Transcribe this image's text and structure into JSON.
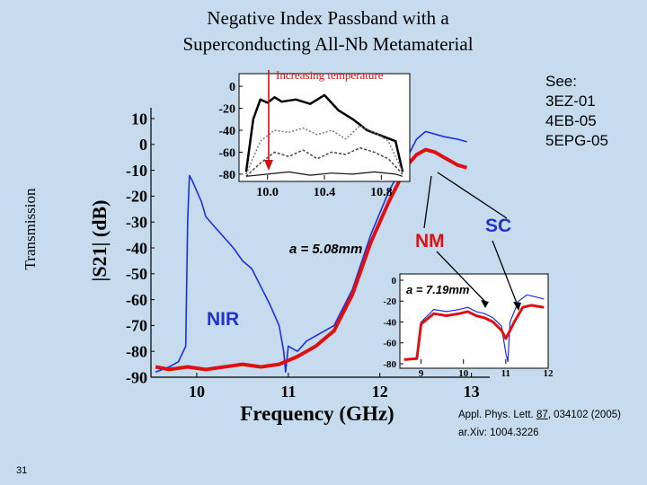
{
  "slide": {
    "title_line1": "Negative Index Passband with a",
    "title_line2": "Superconducting All-Nb Metamaterial",
    "side_label": "Transmission",
    "see_lines": [
      "See:",
      "3EZ-01",
      "4EB-05",
      "5EPG-05"
    ],
    "ref_line1_prefix": "Appl. Phys. Lett. ",
    "ref_line1_volume": "87",
    "ref_line1_suffix": ", 034102 (2005)",
    "ref_line2": "ar.Xiv: 1004.3226",
    "page_number": "31"
  },
  "annotations": {
    "increasing_temperature": "Increasing temperature",
    "lattice_main": "a = 5.08mm",
    "lattice_inset": "a = 7.19mm",
    "nm_label": "NM",
    "sc_label": "SC",
    "nir_label": "NIR"
  },
  "colors": {
    "background": "#c6dbee",
    "sc_series": "#1a2fe0",
    "nm_series": "#e01010",
    "arrow": "#d01010",
    "label_red": "#e01010",
    "label_blue": "#2233cc"
  },
  "chart_data": [
    {
      "type": "line",
      "title": "",
      "xlabel": "Frequency (GHz)",
      "ylabel": "|S21| (dB)",
      "xlim": [
        9.5,
        13.2
      ],
      "ylim": [
        -90,
        10
      ],
      "x_ticks": [
        "10",
        "11",
        "12",
        "13"
      ],
      "y_ticks": [
        "10",
        "0",
        "-10",
        "-20",
        "-30",
        "-40",
        "-50",
        "-60",
        "-70",
        "-80",
        "-90"
      ],
      "series": [
        {
          "name": "SC",
          "x": [
            9.55,
            9.7,
            9.8,
            9.88,
            9.9,
            9.92,
            9.95,
            10.0,
            10.05,
            10.1,
            10.2,
            10.3,
            10.4,
            10.5,
            10.6,
            10.7,
            10.8,
            10.9,
            10.95,
            10.97,
            11.0,
            11.1,
            11.2,
            11.3,
            11.5,
            11.7,
            11.9,
            12.1,
            12.3,
            12.4,
            12.5,
            12.7,
            12.85,
            12.95
          ],
          "y": [
            -88,
            -86,
            -84,
            -78,
            -30,
            -12,
            -14,
            -18,
            -22,
            -28,
            -32,
            -36,
            -40,
            -45,
            -48,
            -55,
            -62,
            -70,
            -80,
            -88,
            -78,
            -80,
            -76,
            -74,
            -70,
            -56,
            -35,
            -18,
            -5,
            2,
            5,
            3,
            2,
            1
          ]
        },
        {
          "name": "NM",
          "x": [
            9.55,
            9.7,
            9.9,
            10.1,
            10.3,
            10.5,
            10.7,
            10.9,
            11.1,
            11.3,
            11.5,
            11.7,
            11.8,
            11.9,
            12.0,
            12.1,
            12.2,
            12.3,
            12.4,
            12.5,
            12.6,
            12.7,
            12.85,
            12.95
          ],
          "y": [
            -86,
            -87,
            -86,
            -87,
            -86,
            -85,
            -86,
            -85,
            -82,
            -78,
            -72,
            -58,
            -48,
            -38,
            -30,
            -22,
            -15,
            -8,
            -4,
            -2,
            -3,
            -5,
            -8,
            -9
          ]
        }
      ]
    },
    {
      "type": "line",
      "title": "",
      "xlabel": "",
      "ylabel": "",
      "xlim": [
        9.8,
        11.0
      ],
      "ylim": [
        -85,
        5
      ],
      "x_ticks": [
        "10.0",
        "10.4",
        "10.8"
      ],
      "y_ticks": [
        "0",
        "-20",
        "-40",
        "-60",
        "-80"
      ],
      "series": [
        {
          "name": "",
          "x": [
            9.85,
            9.9,
            9.95,
            10.0,
            10.05,
            10.1,
            10.2,
            10.3,
            10.4,
            10.5,
            10.6,
            10.7,
            10.8,
            10.9,
            10.95
          ],
          "y": [
            -78,
            -30,
            -12,
            -15,
            -10,
            -14,
            -12,
            -16,
            -8,
            -22,
            -30,
            -40,
            -45,
            -50,
            -78
          ]
        },
        {
          "name": "",
          "x": [
            9.85,
            9.95,
            10.05,
            10.15,
            10.25,
            10.35,
            10.45,
            10.55,
            10.65,
            10.75,
            10.85,
            10.95
          ],
          "y": [
            -80,
            -50,
            -40,
            -42,
            -38,
            -44,
            -40,
            -48,
            -36,
            -42,
            -50,
            -78
          ]
        },
        {
          "name": "",
          "x": [
            9.85,
            9.95,
            10.05,
            10.15,
            10.25,
            10.35,
            10.45,
            10.55,
            10.65,
            10.75,
            10.85,
            10.95
          ],
          "y": [
            -82,
            -70,
            -60,
            -64,
            -58,
            -66,
            -60,
            -62,
            -56,
            -60,
            -66,
            -80
          ]
        },
        {
          "name": "",
          "x": [
            9.85,
            10.0,
            10.15,
            10.3,
            10.45,
            10.6,
            10.75,
            10.9,
            10.95
          ],
          "y": [
            -82,
            -80,
            -78,
            -81,
            -79,
            -80,
            -78,
            -80,
            -82
          ]
        }
      ]
    },
    {
      "type": "line",
      "title": "",
      "xlabel": "",
      "ylabel": "",
      "xlim": [
        8.5,
        12
      ],
      "ylim": [
        -80,
        0
      ],
      "x_ticks": [
        "9",
        "10",
        "11",
        "12"
      ],
      "y_ticks": [
        "0",
        "-20",
        "-40",
        "-60",
        "-80"
      ],
      "series": [
        {
          "name": "SC",
          "x": [
            8.6,
            8.9,
            9.0,
            9.3,
            9.6,
            9.9,
            10.1,
            10.3,
            10.5,
            10.7,
            10.9,
            11.0,
            11.05,
            11.1,
            11.3,
            11.5,
            11.7,
            11.9
          ],
          "y": [
            -76,
            -75,
            -40,
            -28,
            -30,
            -28,
            -26,
            -30,
            -32,
            -36,
            -44,
            -70,
            -78,
            -40,
            -20,
            -14,
            -16,
            -18
          ]
        },
        {
          "name": "NM",
          "x": [
            8.6,
            8.9,
            9.0,
            9.3,
            9.6,
            9.9,
            10.1,
            10.3,
            10.5,
            10.7,
            10.9,
            11.0,
            11.2,
            11.4,
            11.6,
            11.9
          ],
          "y": [
            -76,
            -75,
            -42,
            -32,
            -34,
            -32,
            -30,
            -34,
            -36,
            -40,
            -48,
            -56,
            -40,
            -26,
            -24,
            -26
          ]
        }
      ]
    }
  ]
}
